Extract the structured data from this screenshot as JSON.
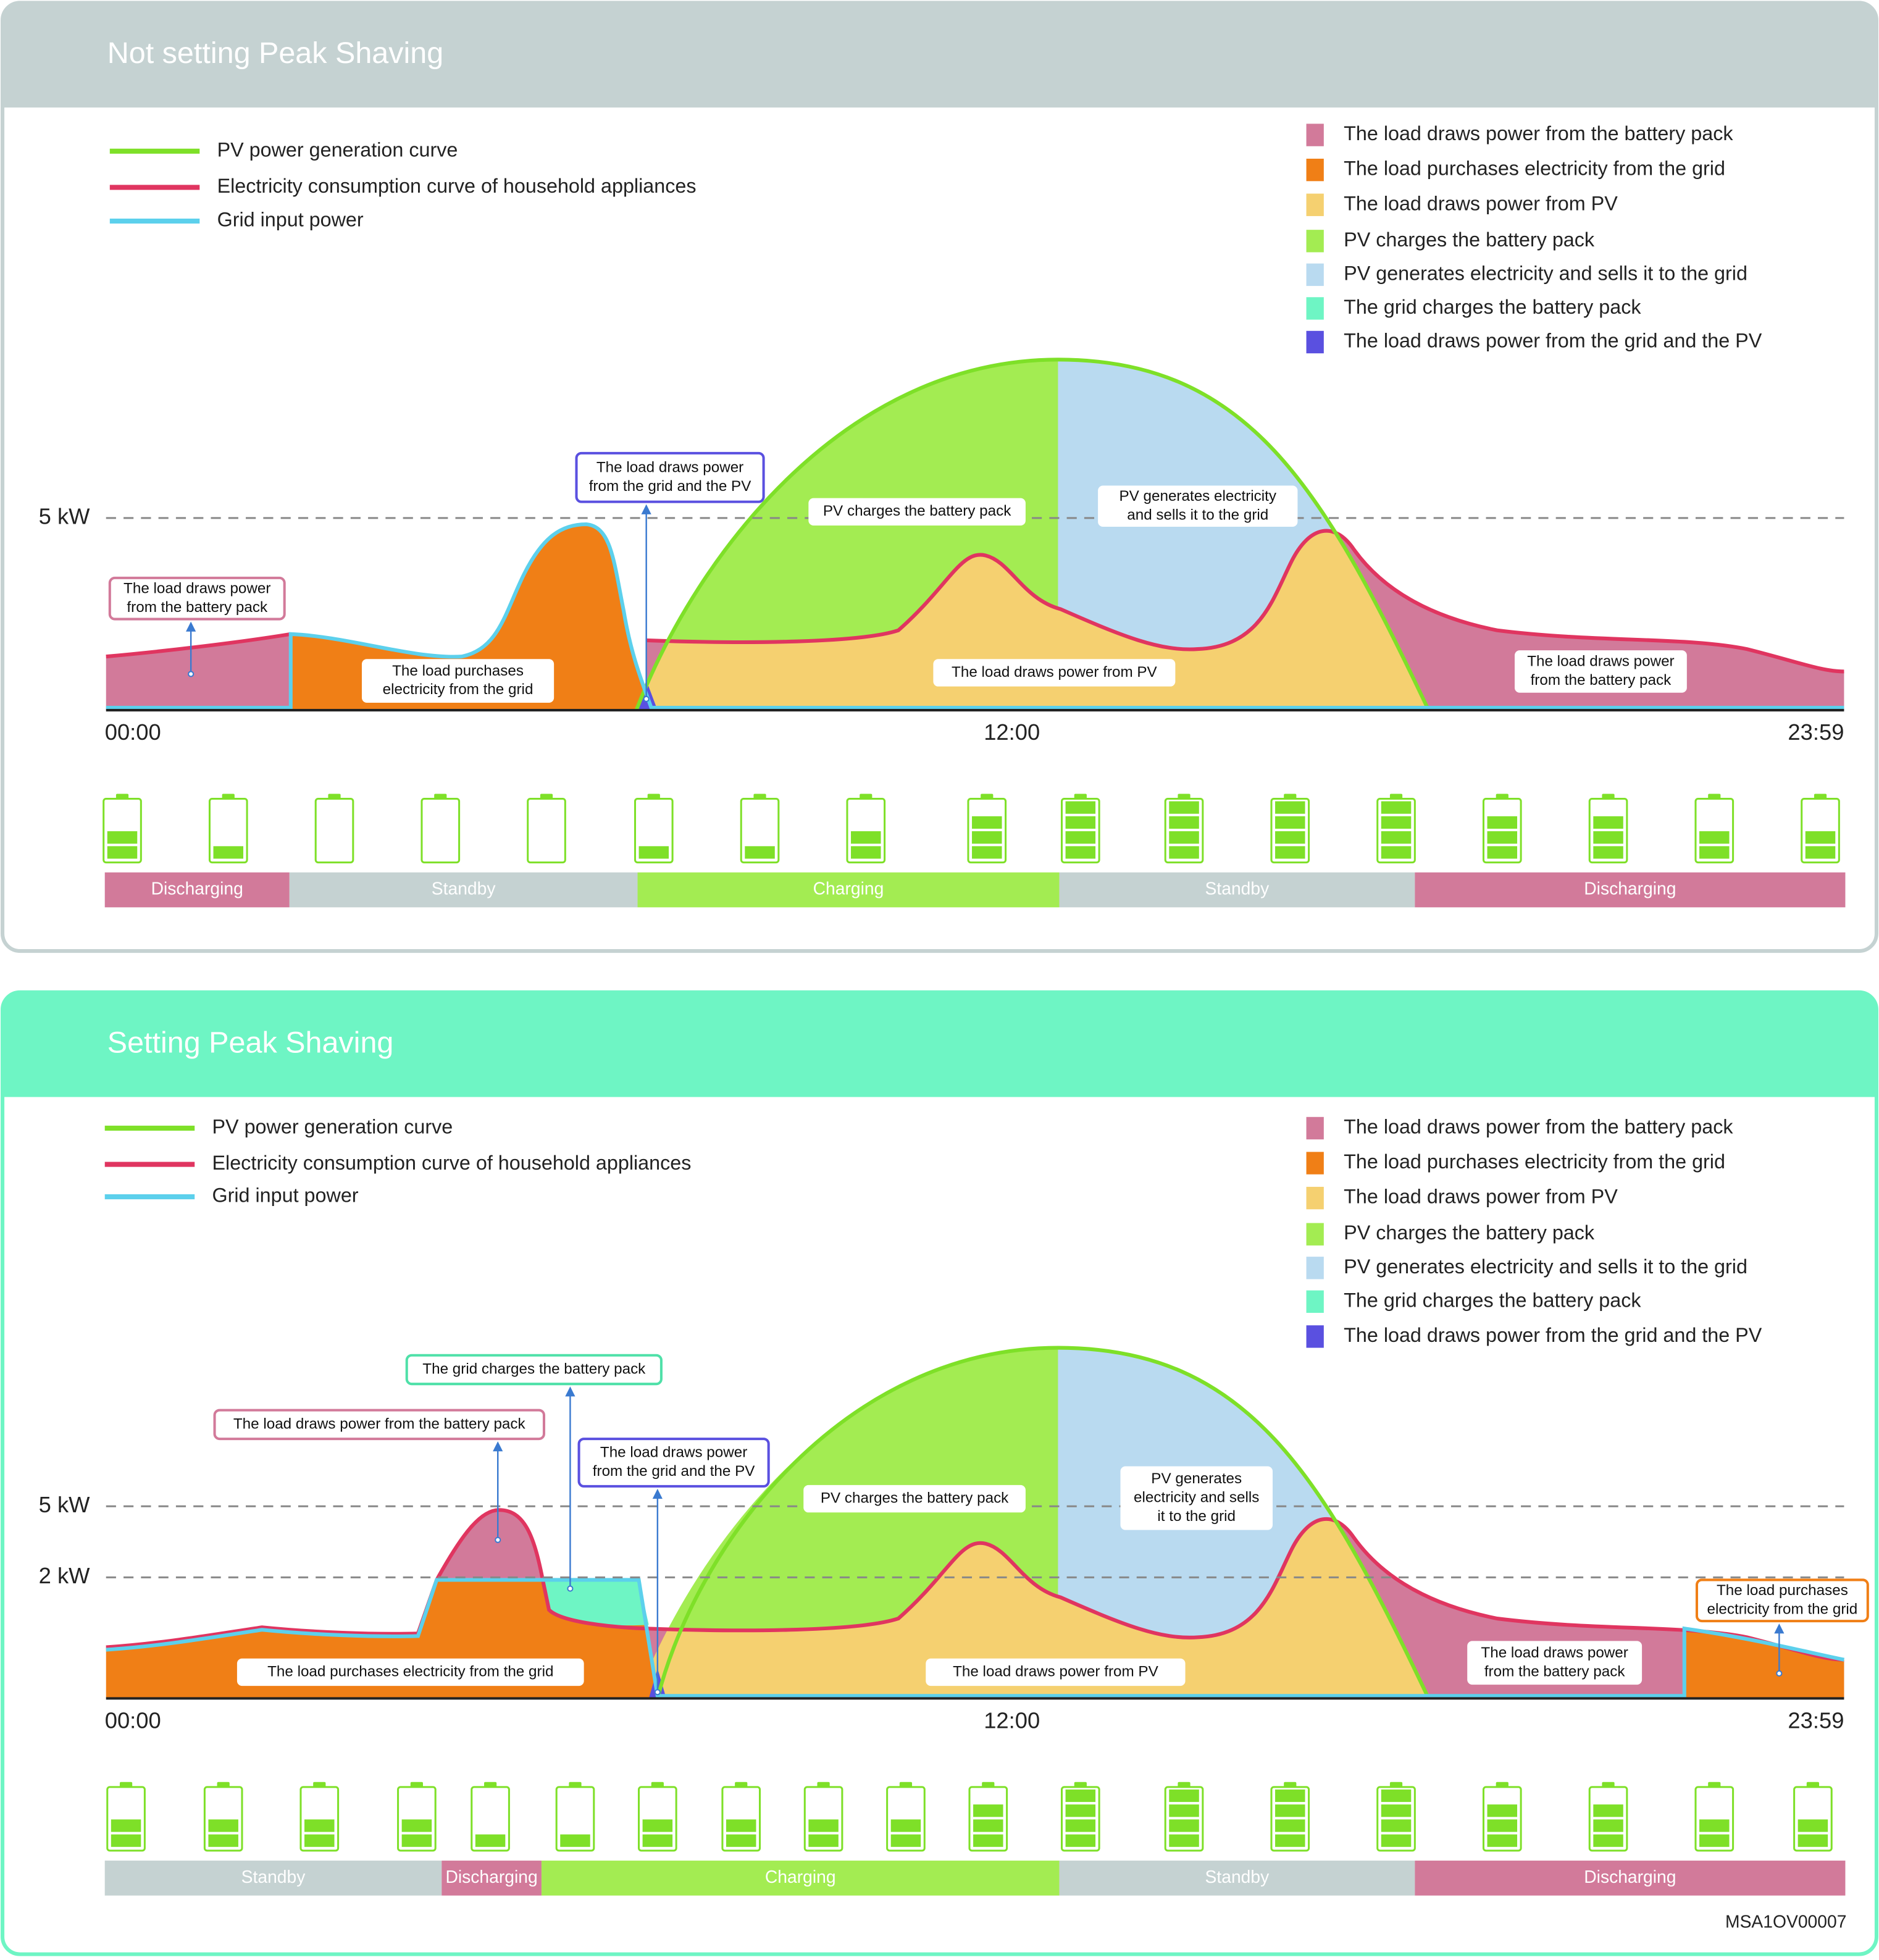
{
  "panels": [
    {
      "title": "Not setting Peak Shaving",
      "line_legend": [
        "PV power generation curve",
        "Electricity consumption curve of household appliances",
        "Grid input power"
      ],
      "area_legend": [
        "The load draws power from the battery pack",
        "The load purchases electricity from the grid",
        "The load draws power from PV",
        "PV charges the battery pack",
        "PV generates electricity and sells it to the grid",
        "The grid charges the battery pack",
        "The load draws power from the grid and the PV"
      ],
      "y_labels": [
        "5 kW"
      ],
      "x_labels": [
        "00:00",
        "12:00",
        "23:59"
      ],
      "callouts": [
        [
          "The load draws power",
          "from the battery pack"
        ],
        [
          "The load purchases",
          "electricity from the grid"
        ],
        [
          "The load draws power",
          "from the grid and the PV"
        ],
        [
          "PV charges the battery pack"
        ],
        [
          "PV generates electricity",
          "and sells it to the grid"
        ],
        [
          "The load draws power from PV"
        ],
        [
          "The load draws power",
          "from the battery pack"
        ]
      ],
      "modes": [
        "Discharging",
        "Standby",
        "Charging",
        "Standby",
        "Discharging"
      ]
    },
    {
      "title": "Setting Peak Shaving",
      "line_legend": [
        "PV power generation curve",
        "Electricity consumption curve of household appliances",
        "Grid input power"
      ],
      "area_legend": [
        "The load draws power from the battery pack",
        "The load purchases electricity from the grid",
        "The load draws power from PV",
        "PV charges the battery pack",
        "PV generates electricity and sells it to the grid",
        "The grid charges the battery pack",
        "The load draws power from the grid and the PV"
      ],
      "y_labels": [
        "5 kW",
        "2 kW"
      ],
      "x_labels": [
        "00:00",
        "12:00",
        "23:59"
      ],
      "callouts": [
        [
          "The grid charges the battery pack"
        ],
        [
          "The load draws power from the battery pack"
        ],
        [
          "The load draws power",
          "from the grid and the PV"
        ],
        [
          "PV charges the battery pack"
        ],
        [
          "PV generates",
          "electricity and sells",
          "it to the grid"
        ],
        [
          "The load purchases electricity from the grid"
        ],
        [
          "The load draws power from PV"
        ],
        [
          "The load draws power",
          "from the battery pack"
        ],
        [
          "The load purchases",
          "electricity from the grid"
        ]
      ],
      "modes": [
        "Standby",
        "Discharging",
        "Charging",
        "Standby",
        "Discharging"
      ]
    }
  ],
  "figure_code": "MSA1OV00007"
}
